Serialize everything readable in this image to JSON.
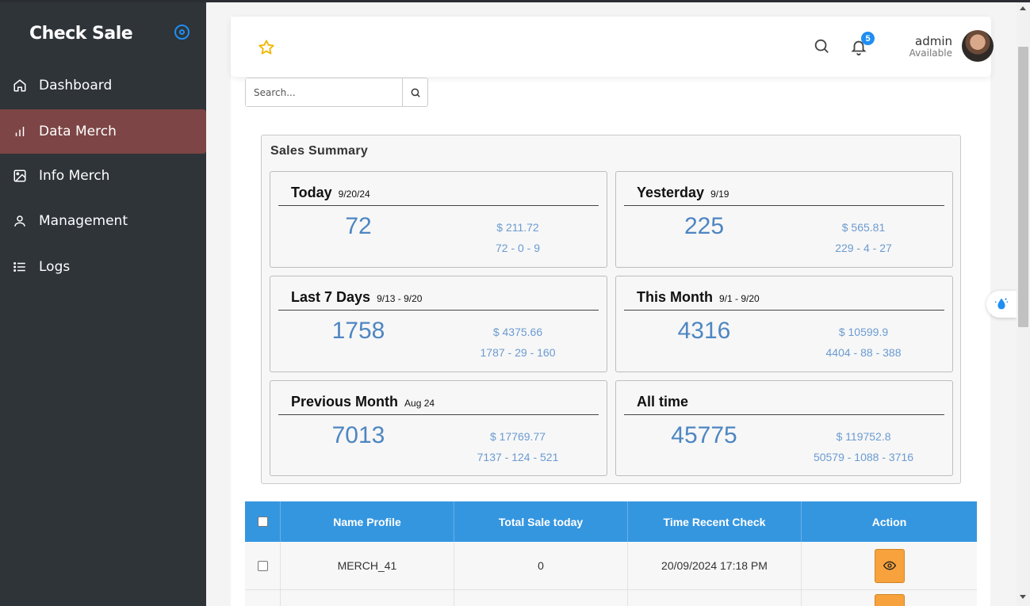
{
  "sidebar": {
    "brand": "Check Sale",
    "items": [
      {
        "label": "Dashboard",
        "icon": "home-icon",
        "active": false
      },
      {
        "label": "Data Merch",
        "icon": "bar-chart-icon",
        "active": true
      },
      {
        "label": "Info Merch",
        "icon": "image-icon",
        "active": false
      },
      {
        "label": "Management",
        "icon": "user-icon",
        "active": false
      },
      {
        "label": "Logs",
        "icon": "list-icon",
        "active": false
      }
    ]
  },
  "header": {
    "notification_count": "5",
    "user_name": "admin",
    "user_status": "Available"
  },
  "search": {
    "placeholder": "Search..."
  },
  "summary": {
    "title": "Sales Summary",
    "cards": [
      {
        "title": "Today",
        "sub": "9/20/24",
        "count": "72",
        "money": "$ 211.72",
        "breakdown": "72 - 0 - 9"
      },
      {
        "title": "Yesterday",
        "sub": "9/19",
        "count": "225",
        "money": "$ 565.81",
        "breakdown": "229 - 4 - 27"
      },
      {
        "title": "Last 7 Days",
        "sub": "9/13 - 9/20",
        "count": "1758",
        "money": "$ 4375.66",
        "breakdown": "1787 - 29 - 160"
      },
      {
        "title": "This Month",
        "sub": "9/1 - 9/20",
        "count": "4316",
        "money": "$ 10599.9",
        "breakdown": "4404 - 88 - 388"
      },
      {
        "title": "Previous Month",
        "sub": "Aug 24",
        "count": "7013",
        "money": "$ 17769.77",
        "breakdown": "7137 - 124 - 521"
      },
      {
        "title": "All time",
        "sub": "",
        "count": "45775",
        "money": "$ 119752.8",
        "breakdown": "50579 - 1088 - 3716"
      }
    ]
  },
  "table": {
    "headers": [
      "Name Profile",
      "Total Sale today",
      "Time Recent Check",
      "Action"
    ],
    "rows": [
      {
        "name": "MERCH_41",
        "total": "0",
        "time": "20/09/2024 17:18 PM"
      }
    ]
  },
  "colors": {
    "sidebar_bg": "#2f3439",
    "active_item": "#7d4545",
    "table_header": "#3596e0",
    "accent": "#1f8ef1",
    "action_button": "#f7a23c",
    "value_text": "#4d86c2"
  }
}
